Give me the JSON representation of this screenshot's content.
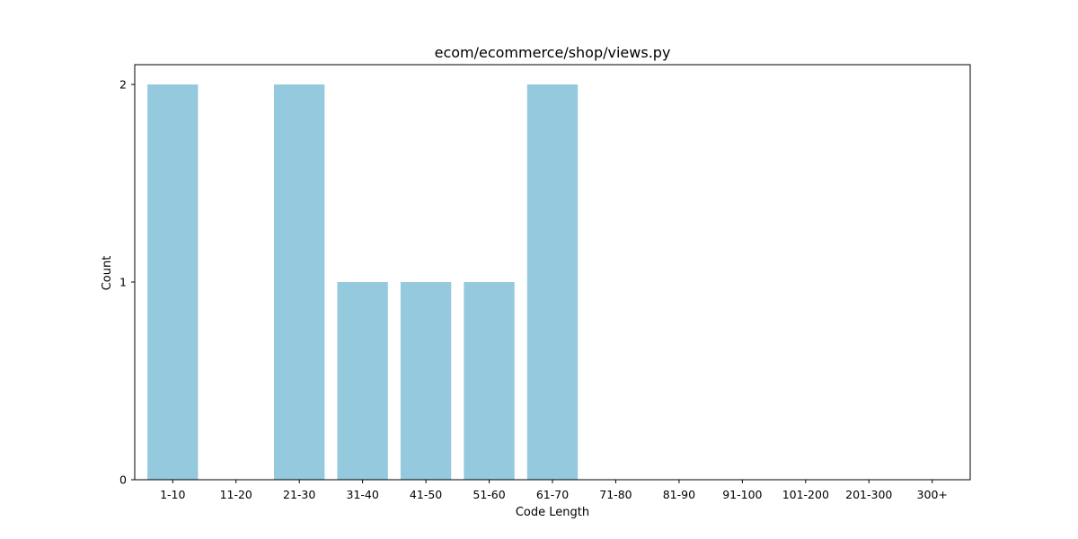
{
  "chart_data": {
    "type": "bar",
    "title": "ecom/ecommerce/shop/views.py",
    "xlabel": "Code Length",
    "ylabel": "Count",
    "categories": [
      "1-10",
      "11-20",
      "21-30",
      "31-40",
      "41-50",
      "51-60",
      "61-70",
      "71-80",
      "81-90",
      "91-100",
      "101-200",
      "201-300",
      "300+"
    ],
    "values": [
      2,
      0,
      2,
      1,
      1,
      1,
      2,
      0,
      0,
      0,
      0,
      0,
      0
    ],
    "ylim": [
      0,
      2.1
    ],
    "yticks": [
      0,
      1,
      2
    ],
    "bar_color": "#95c9de",
    "grid": false,
    "legend": "none"
  }
}
